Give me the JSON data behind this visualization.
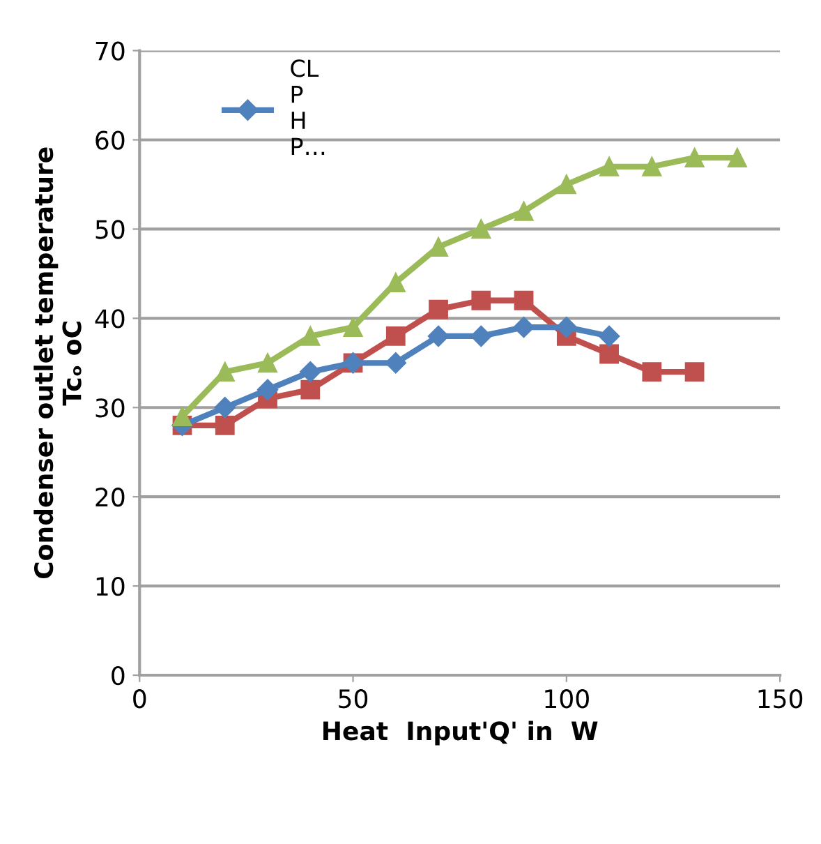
{
  "chart_data": {
    "type": "line",
    "xlabel": "Heat  Input'Q' in  W",
    "ylabel": "Condenser outlet temperature\nTcₒ oC",
    "xlim": [
      0,
      150
    ],
    "xticks": [
      0,
      50,
      100,
      150
    ],
    "ylim": [
      0,
      70
    ],
    "yticks": [
      0,
      10,
      20,
      30,
      40,
      50,
      60,
      70
    ],
    "grid": "y",
    "legend": "top left",
    "series": [
      {
        "name": "CL\nP\nH\nP…",
        "color": "#4f81bd",
        "marker": "diamond",
        "x": [
          10,
          20,
          30,
          40,
          50,
          60,
          70,
          80,
          90,
          100,
          110
        ],
        "values": [
          28,
          30,
          32,
          34,
          35,
          35,
          38,
          38,
          39,
          39,
          38
        ]
      },
      {
        "color": "#c0504d",
        "marker": "square",
        "x": [
          10,
          20,
          30,
          40,
          50,
          60,
          70,
          80,
          90,
          100,
          110,
          120,
          130
        ],
        "values": [
          28,
          28,
          31,
          32,
          35,
          38,
          41,
          42,
          42,
          38,
          36,
          34,
          34
        ]
      },
      {
        "color": "#9bbb59",
        "marker": "triangle",
        "x": [
          10,
          20,
          30,
          40,
          50,
          60,
          70,
          80,
          90,
          100,
          110,
          120,
          130,
          140
        ],
        "values": [
          29,
          34,
          35,
          38,
          39,
          44,
          48,
          50,
          52,
          55,
          57,
          57,
          58,
          58
        ]
      }
    ]
  }
}
